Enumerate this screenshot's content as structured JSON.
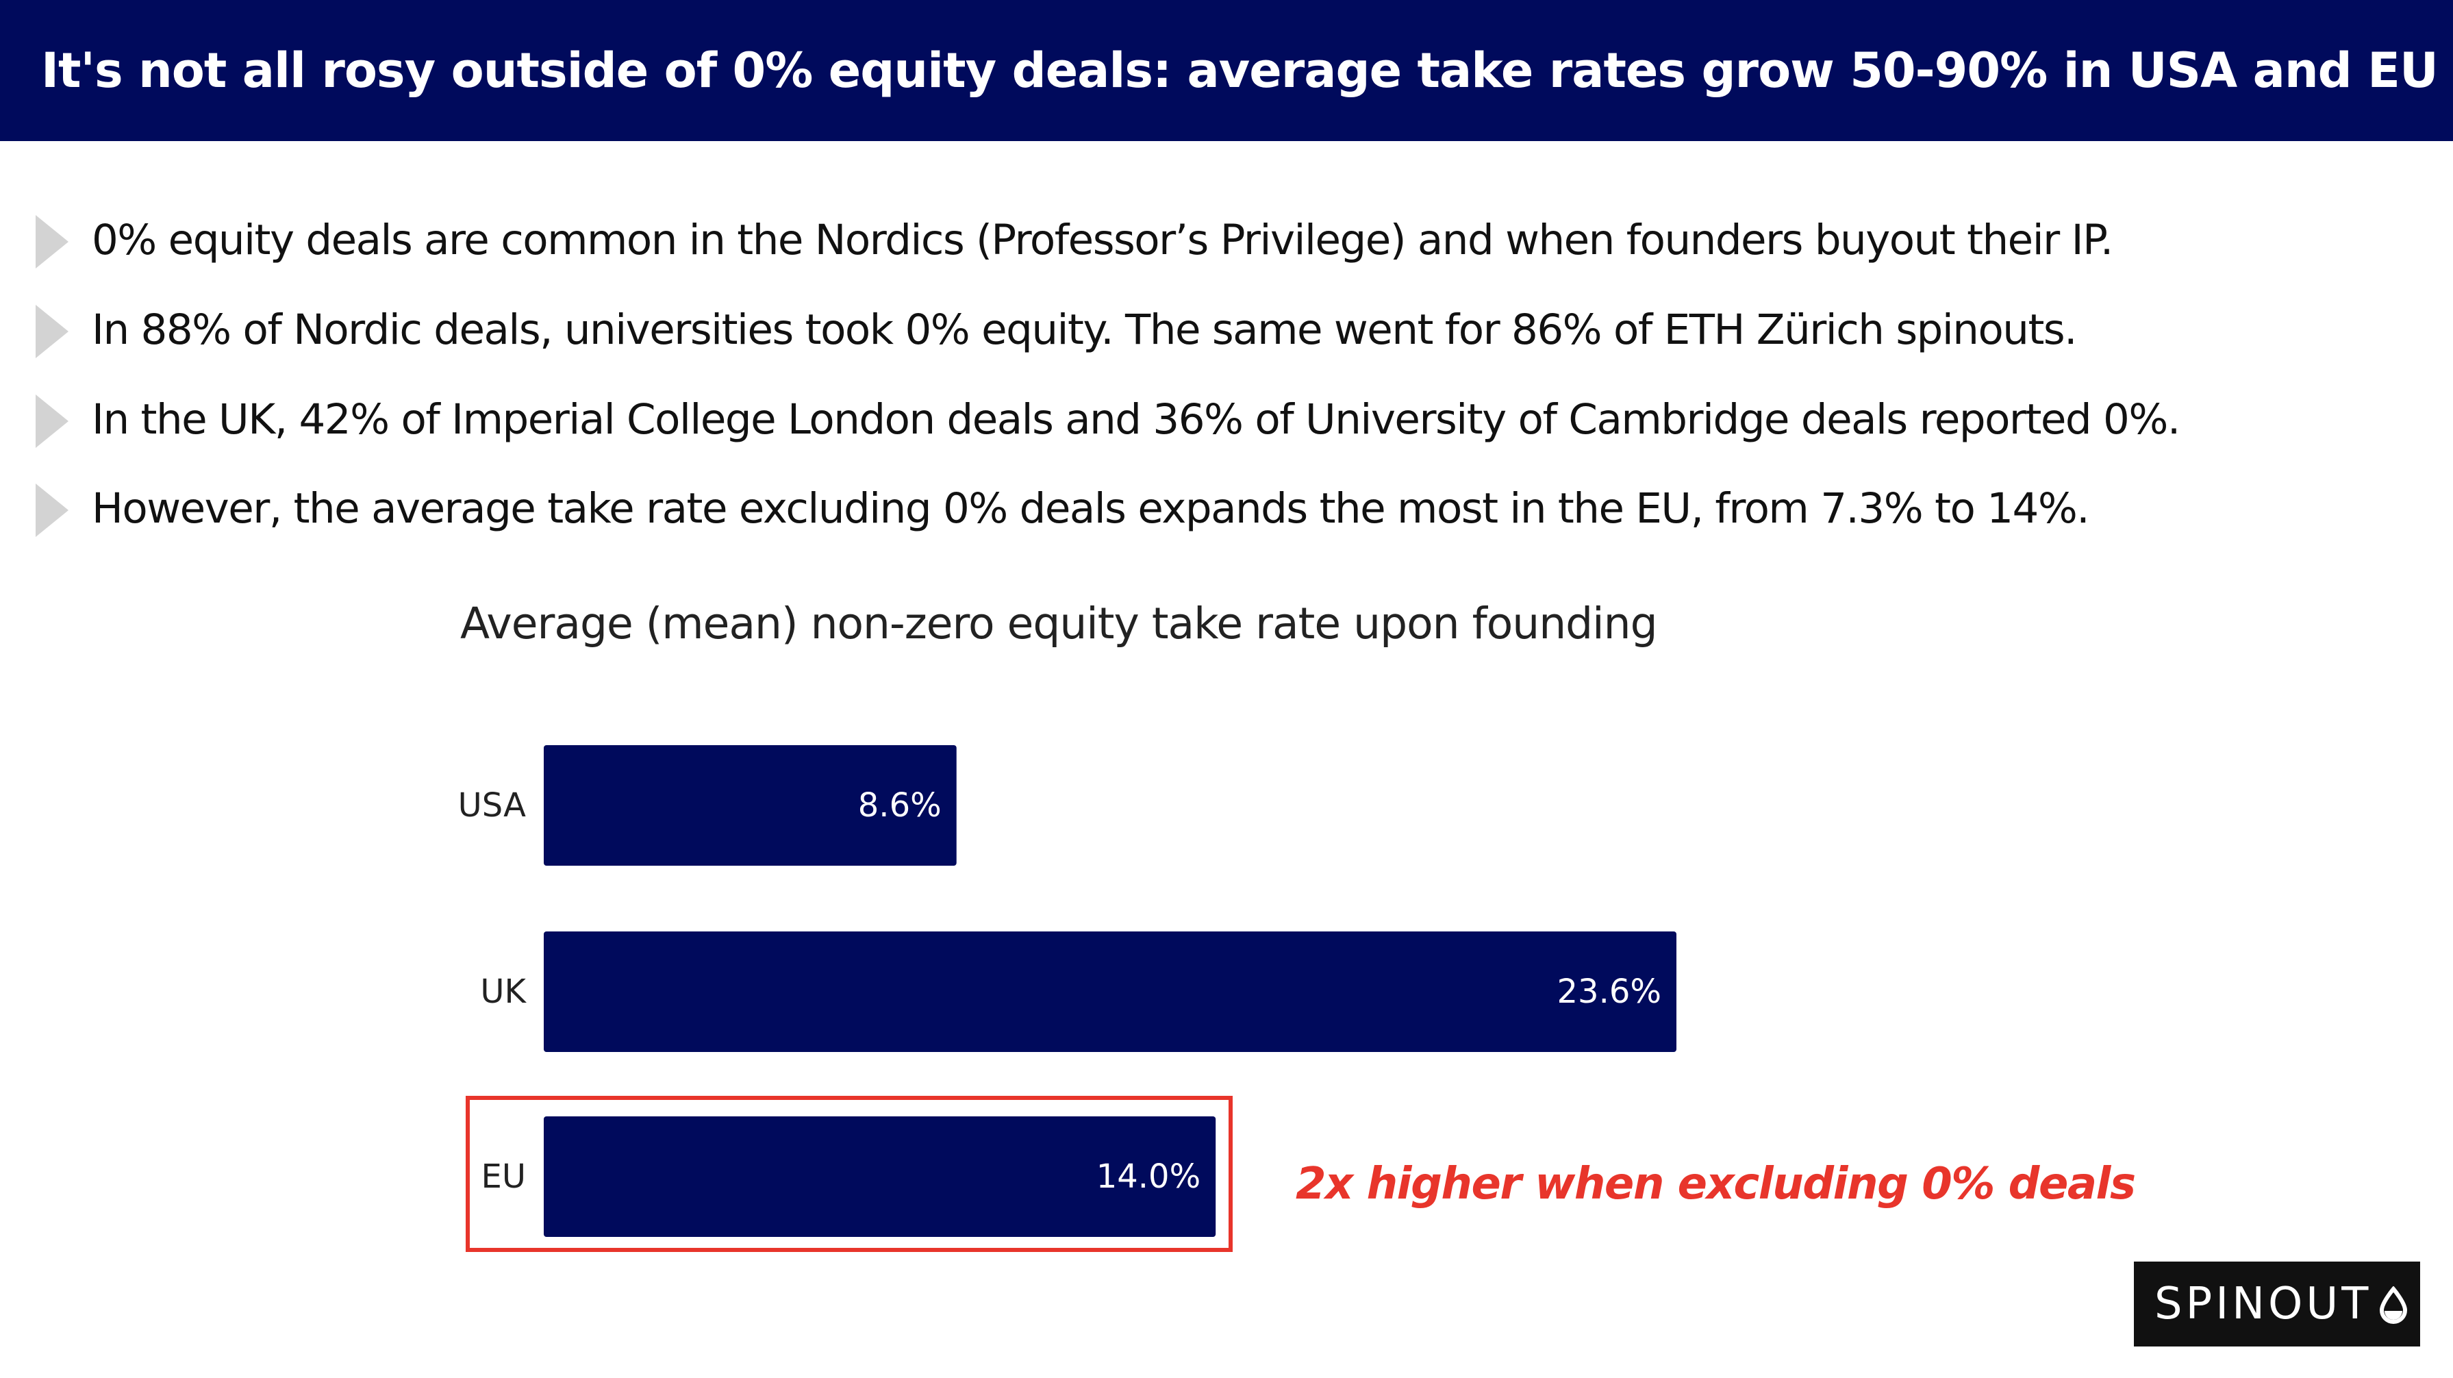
{
  "header": {
    "title": "It's not all rosy outside of 0% equity deals: average take rates grow 50-90% in USA and EU"
  },
  "bullets": [
    "0% equity deals are common in the Nordics (Professor’s Privilege) and when founders buyout their IP.",
    "In 88% of Nordic deals, universities took 0% equity. The same went for 86% of ETH Zürich spinouts.",
    "In the UK, 42% of Imperial College London deals and 36% of University of Cambridge deals reported 0%.",
    "However, the average take rate excluding 0% deals expands the most in the EU, from 7.3% to 14%."
  ],
  "chart_data": {
    "type": "bar",
    "orientation": "horizontal",
    "title": "Average (mean) non-zero equity take rate upon founding",
    "categories": [
      "USA",
      "UK",
      "EU"
    ],
    "values": [
      8.6,
      23.6,
      14.0
    ],
    "value_labels": [
      "8.6%",
      "23.6%",
      "14.0%"
    ],
    "unit": "%",
    "xlim": [
      0,
      23.6
    ],
    "xlabel": "",
    "ylabel": "",
    "grid": false,
    "highlight": {
      "category": "EU",
      "annotation": "2x higher when excluding 0% deals"
    }
  },
  "colors": {
    "header_bg": "#000a5c",
    "bar": "#000a5c",
    "highlight": "#e8352b",
    "bullet_arrow": "#d3d3d3",
    "logo_bg": "#111111"
  },
  "logo": {
    "text": "SPINOUT",
    "icon": "drop-icon"
  }
}
